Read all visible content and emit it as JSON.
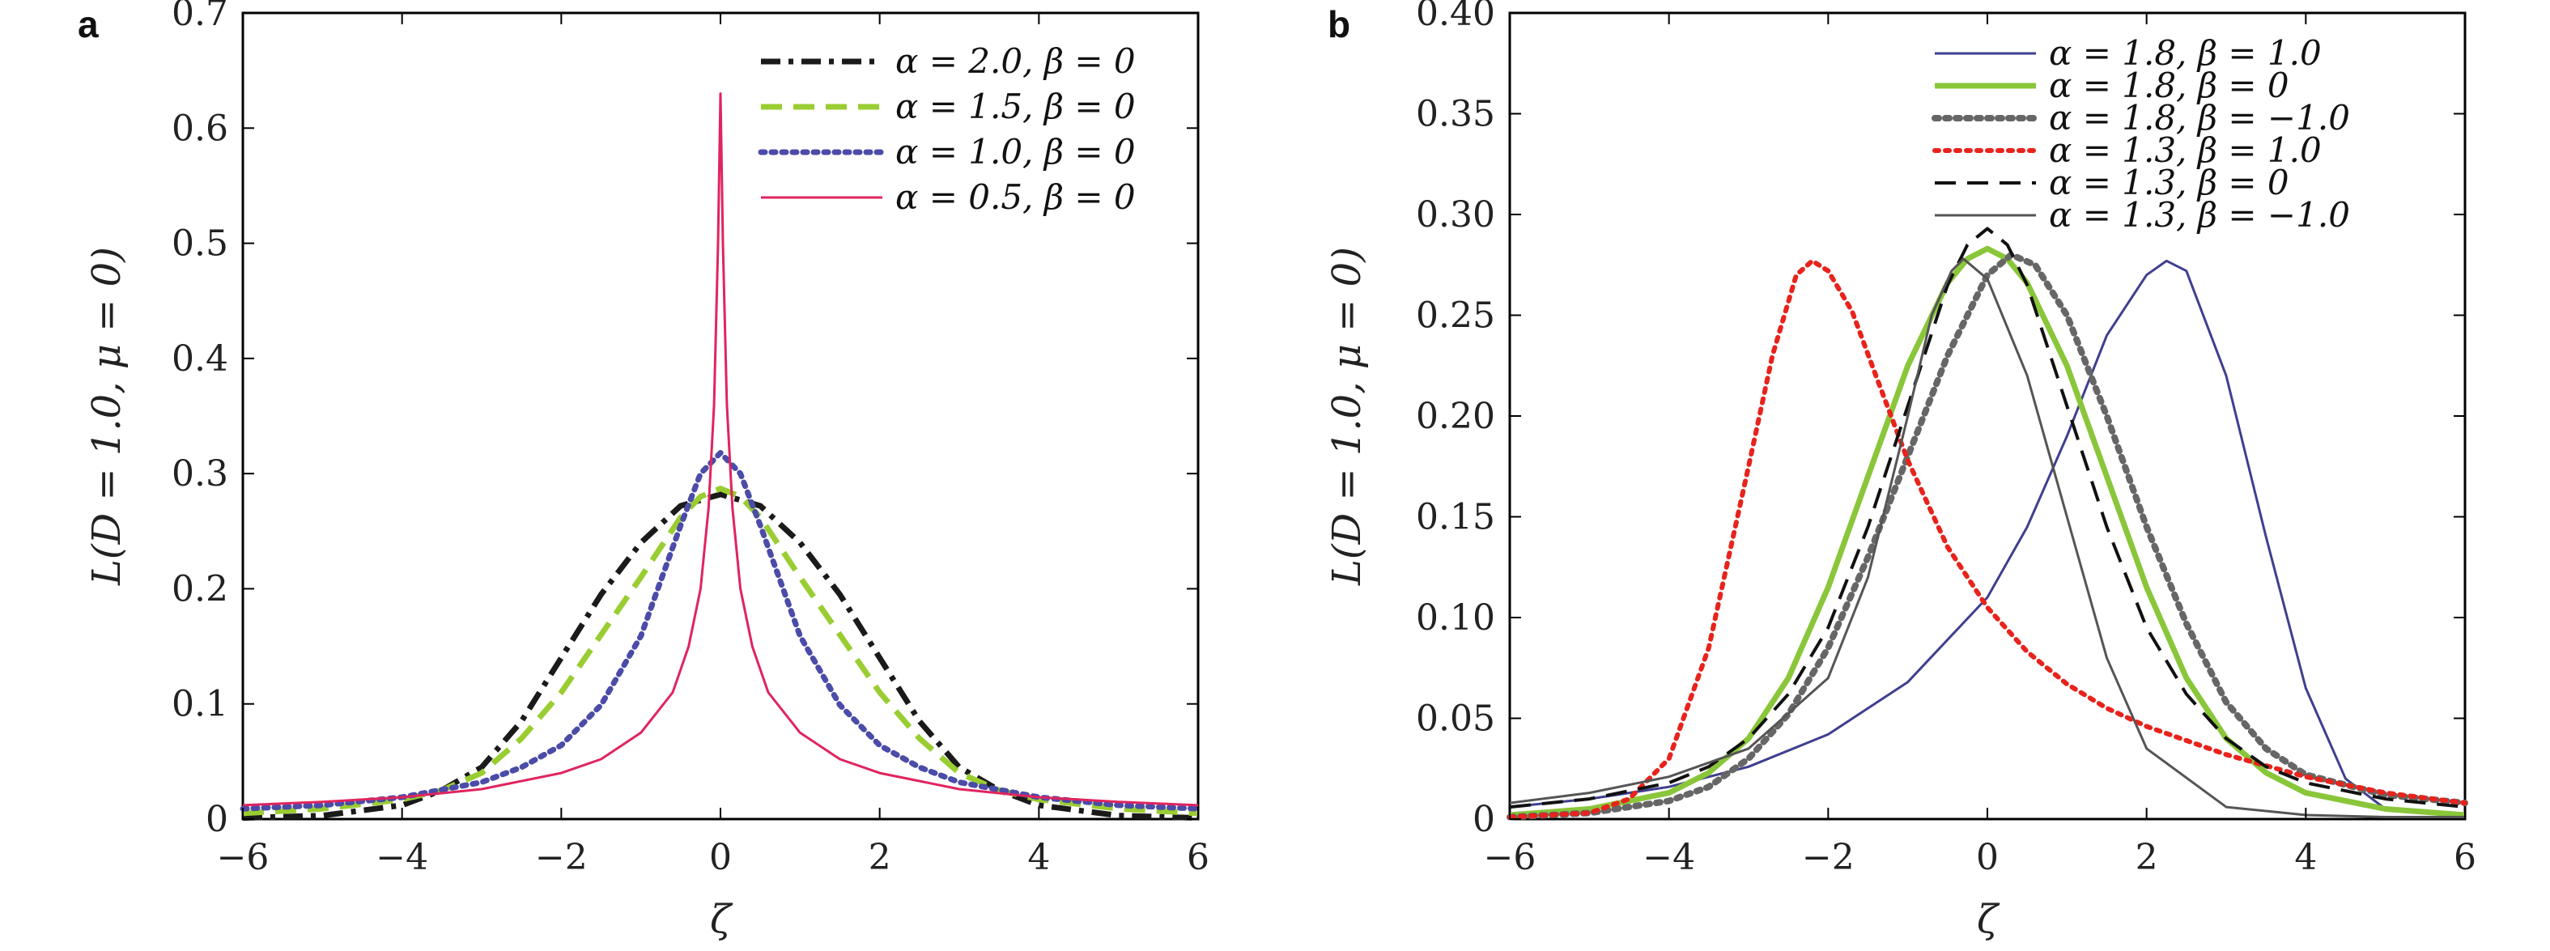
{
  "chart_data": [
    {
      "panel_label": "a",
      "type": "line",
      "xlabel": "ζ",
      "ylabel": "L(D = 1.0, μ = 0)",
      "xlim": [
        -6,
        6
      ],
      "ylim": [
        0,
        0.7
      ],
      "xticks": [
        "−6",
        "−4",
        "−2",
        "0",
        "2",
        "4",
        "6"
      ],
      "yticks": [
        "0",
        "0.1",
        "0.2",
        "0.3",
        "0.4",
        "0.5",
        "0.6",
        "0.7"
      ],
      "grid": false,
      "legend_position": "top-right",
      "series": [
        {
          "name": "α = 2.0, β = 0",
          "color": "#1a1a1a",
          "dash": "dashdot",
          "width": 7,
          "x": [
            -6,
            -5,
            -4,
            -3.5,
            -3,
            -2.5,
            -2,
            -1.5,
            -1,
            -0.5,
            0,
            0.5,
            1,
            1.5,
            2,
            2.5,
            3,
            3.5,
            4,
            5,
            6
          ],
          "y": [
            0.001,
            0.003,
            0.012,
            0.025,
            0.045,
            0.085,
            0.14,
            0.195,
            0.24,
            0.272,
            0.282,
            0.272,
            0.24,
            0.195,
            0.14,
            0.085,
            0.045,
            0.025,
            0.012,
            0.003,
            0.001
          ]
        },
        {
          "name": "α = 1.5, β = 0",
          "color": "#9acd32",
          "dash": "dashed",
          "width": 7,
          "x": [
            -6,
            -5,
            -4,
            -3.5,
            -3,
            -2.5,
            -2,
            -1.5,
            -1,
            -0.5,
            -0.25,
            0,
            0.25,
            0.5,
            1,
            1.5,
            2,
            2.5,
            3,
            3.5,
            4,
            5,
            6
          ],
          "y": [
            0.005,
            0.009,
            0.017,
            0.025,
            0.04,
            0.07,
            0.11,
            0.16,
            0.21,
            0.262,
            0.28,
            0.287,
            0.28,
            0.262,
            0.21,
            0.16,
            0.11,
            0.07,
            0.04,
            0.025,
            0.017,
            0.009,
            0.005
          ]
        },
        {
          "name": "α = 1.0, β = 0",
          "color": "#4b4ba8",
          "dash": "dotted",
          "width": 7,
          "x": [
            -6,
            -5,
            -4,
            -3,
            -2.5,
            -2,
            -1.5,
            -1,
            -0.5,
            -0.25,
            0,
            0.25,
            0.5,
            1,
            1.5,
            2,
            2.5,
            3,
            4,
            5,
            6
          ],
          "y": [
            0.009,
            0.012,
            0.019,
            0.032,
            0.045,
            0.064,
            0.099,
            0.159,
            0.255,
            0.3,
            0.318,
            0.3,
            0.255,
            0.159,
            0.099,
            0.064,
            0.045,
            0.032,
            0.019,
            0.012,
            0.009
          ]
        },
        {
          "name": "α = 0.5, β = 0",
          "color": "#e0245e",
          "dash": "solid",
          "width": 3,
          "x": [
            -6,
            -5,
            -4,
            -3,
            -2,
            -1.5,
            -1,
            -0.6,
            -0.4,
            -0.25,
            -0.15,
            -0.08,
            -0.03,
            0,
            0.03,
            0.08,
            0.15,
            0.25,
            0.4,
            0.6,
            1,
            1.5,
            2,
            3,
            4,
            5,
            6
          ],
          "y": [
            0.012,
            0.015,
            0.019,
            0.026,
            0.04,
            0.052,
            0.075,
            0.11,
            0.15,
            0.2,
            0.27,
            0.36,
            0.5,
            0.63,
            0.5,
            0.36,
            0.27,
            0.2,
            0.15,
            0.11,
            0.075,
            0.052,
            0.04,
            0.026,
            0.019,
            0.015,
            0.012
          ]
        }
      ]
    },
    {
      "panel_label": "b",
      "type": "line",
      "xlabel": "ζ",
      "ylabel": "L(D = 1.0, μ = 0)",
      "xlim": [
        -6,
        6
      ],
      "ylim": [
        0,
        0.4
      ],
      "xticks": [
        "−6",
        "−4",
        "−2",
        "0",
        "2",
        "4",
        "6"
      ],
      "yticks": [
        "0",
        "0.05",
        "0.10",
        "0.15",
        "0.20",
        "0.25",
        "0.30",
        "0.35",
        "0.40"
      ],
      "grid": false,
      "legend_position": "top-right",
      "series": [
        {
          "name": "α = 1.8, β = 1.0",
          "color": "#3f3f8f",
          "dash": "solid",
          "width": 3,
          "x": [
            -6,
            -5,
            -4,
            -3,
            -2,
            -1,
            0,
            0.5,
            1,
            1.5,
            2,
            2.25,
            2.5,
            3,
            3.5,
            4,
            4.5,
            5,
            6
          ],
          "y": [
            0.006,
            0.01,
            0.016,
            0.026,
            0.042,
            0.068,
            0.11,
            0.145,
            0.19,
            0.24,
            0.27,
            0.277,
            0.272,
            0.22,
            0.14,
            0.065,
            0.02,
            0.005,
            0.001
          ]
        },
        {
          "name": "α = 1.8, β = 0",
          "color": "#8ac63a",
          "dash": "solid",
          "width": 7,
          "x": [
            -6,
            -5,
            -4,
            -3.5,
            -3,
            -2.5,
            -2,
            -1.5,
            -1,
            -0.5,
            -0.25,
            0,
            0.25,
            0.5,
            1,
            1.5,
            2,
            2.5,
            3,
            3.5,
            4,
            5,
            6
          ],
          "y": [
            0.002,
            0.005,
            0.013,
            0.023,
            0.04,
            0.07,
            0.115,
            0.17,
            0.225,
            0.266,
            0.278,
            0.283,
            0.278,
            0.266,
            0.225,
            0.17,
            0.115,
            0.07,
            0.04,
            0.023,
            0.013,
            0.005,
            0.002
          ]
        },
        {
          "name": "α = 1.8, β = −1.0",
          "color": "#666666",
          "dash": "dotted",
          "width": 8,
          "x": [
            -6,
            -5,
            -4,
            -3.5,
            -3,
            -2.5,
            -2,
            -1.5,
            -1,
            -0.5,
            0,
            0.3,
            0.6,
            1,
            1.5,
            2,
            2.5,
            3,
            3.5,
            4,
            5,
            6
          ],
          "y": [
            0.001,
            0.003,
            0.009,
            0.016,
            0.03,
            0.052,
            0.085,
            0.13,
            0.18,
            0.23,
            0.27,
            0.28,
            0.275,
            0.25,
            0.2,
            0.145,
            0.097,
            0.058,
            0.035,
            0.022,
            0.012,
            0.008
          ]
        },
        {
          "name": "α = 1.3, β = 1.0",
          "color": "#e8231c",
          "dash": "dotted",
          "width": 6,
          "x": [
            -6,
            -5,
            -4.5,
            -4,
            -3.5,
            -3,
            -2.7,
            -2.4,
            -2.2,
            -2,
            -1.7,
            -1.4,
            -1,
            -0.5,
            0,
            0.5,
            1,
            1.5,
            2,
            3,
            4,
            5,
            6
          ],
          "y": [
            0.001,
            0.003,
            0.01,
            0.03,
            0.085,
            0.175,
            0.23,
            0.27,
            0.277,
            0.272,
            0.252,
            0.22,
            0.178,
            0.135,
            0.105,
            0.083,
            0.067,
            0.055,
            0.046,
            0.032,
            0.021,
            0.013,
            0.008
          ]
        },
        {
          "name": "α = 1.3, β = 0",
          "color": "#111111",
          "dash": "dashed",
          "width": 4,
          "x": [
            -6,
            -5,
            -4,
            -3.5,
            -3,
            -2.5,
            -2,
            -1.5,
            -1,
            -0.5,
            -0.25,
            0,
            0.25,
            0.5,
            1,
            1.5,
            2,
            2.5,
            3,
            3.5,
            4,
            5,
            6
          ],
          "y": [
            0.006,
            0.01,
            0.018,
            0.026,
            0.04,
            0.062,
            0.095,
            0.145,
            0.205,
            0.265,
            0.285,
            0.293,
            0.285,
            0.265,
            0.205,
            0.145,
            0.095,
            0.062,
            0.04,
            0.026,
            0.018,
            0.01,
            0.006
          ]
        },
        {
          "name": "α = 1.3, β = −1.0",
          "color": "#555555",
          "dash": "solid",
          "width": 3,
          "x": [
            -6,
            -5,
            -4,
            -3,
            -2,
            -1.5,
            -1,
            -0.7,
            -0.45,
            -0.3,
            0,
            0.5,
            1,
            1.5,
            2,
            3,
            4,
            5,
            6
          ],
          "y": [
            0.008,
            0.013,
            0.021,
            0.035,
            0.07,
            0.12,
            0.2,
            0.25,
            0.272,
            0.278,
            0.268,
            0.22,
            0.15,
            0.08,
            0.035,
            0.006,
            0.002,
            0.001,
            0.001
          ]
        }
      ]
    }
  ]
}
